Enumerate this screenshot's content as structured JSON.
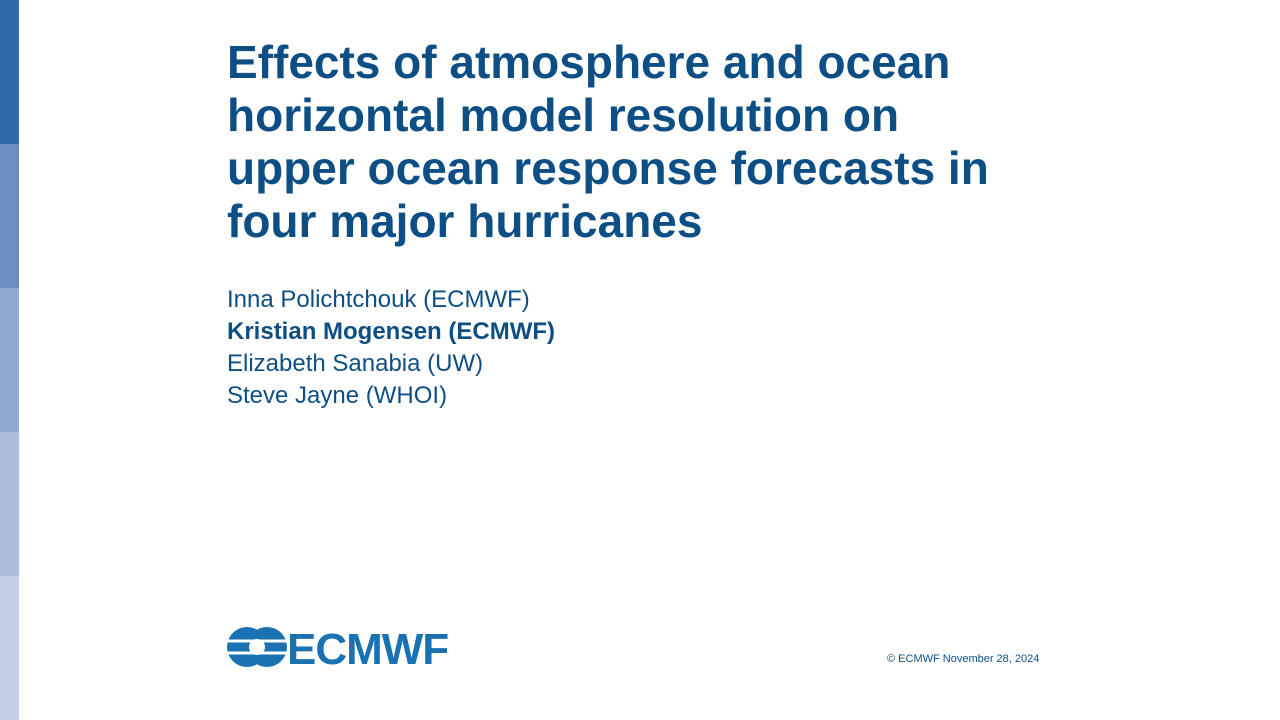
{
  "slide": {
    "title_lines": [
      "Effects of atmosphere and ocean",
      "horizontal model resolution on",
      "upper ocean response forecasts in",
      "four major hurricanes"
    ],
    "authors": [
      {
        "name": "Inna Polichtchouk (ECMWF)",
        "bold": false
      },
      {
        "name": "Kristian Mogensen (ECMWF)",
        "bold": true
      },
      {
        "name": "Elizabeth Sanabia (UW)",
        "bold": false
      },
      {
        "name": "Steve Jayne (WHOI)",
        "bold": false
      }
    ],
    "logo_text": "ECMWF",
    "footer": "© ECMWF November 28, 2024"
  }
}
